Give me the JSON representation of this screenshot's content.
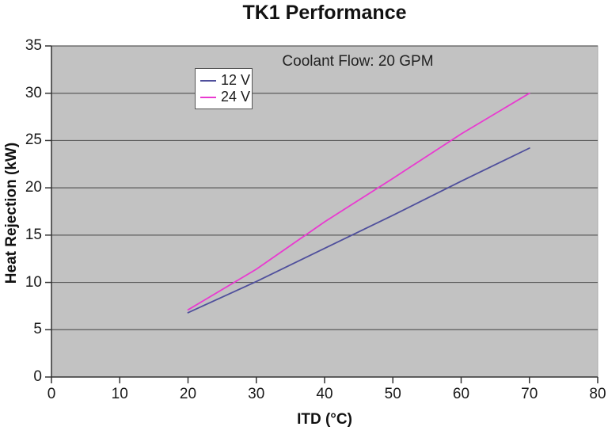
{
  "chart_data": {
    "type": "line",
    "title": "TK1 Performance",
    "xlabel": "ITD (°C)",
    "ylabel": "Heat Rejection (kW)",
    "annotation": "Coolant Flow: 20 GPM",
    "xlim": [
      0,
      80
    ],
    "ylim": [
      0,
      35
    ],
    "xticks": [
      0,
      10,
      20,
      30,
      40,
      50,
      60,
      70,
      80
    ],
    "yticks": [
      0,
      5,
      10,
      15,
      20,
      25,
      30,
      35
    ],
    "grid": "horizontal",
    "legend_position": "inside-top-left",
    "colors": {
      "plot_background": "#c2c2c2",
      "gridline": "#5a5a5a",
      "axis": "#333333",
      "plot_border": "#ababab",
      "series_12v": "#4f4f9c",
      "series_24v": "#e93ad0"
    },
    "series": [
      {
        "name": "12 V",
        "color": "#4f4f9c",
        "x": [
          20,
          30,
          40,
          50,
          60,
          70
        ],
        "y": [
          6.8,
          10.1,
          13.6,
          17.1,
          20.7,
          24.2
        ]
      },
      {
        "name": "24 V",
        "color": "#e93ad0",
        "x": [
          20,
          30,
          40,
          50,
          60,
          70
        ],
        "y": [
          7.1,
          11.4,
          16.4,
          21.0,
          25.7,
          30.0
        ]
      }
    ]
  }
}
